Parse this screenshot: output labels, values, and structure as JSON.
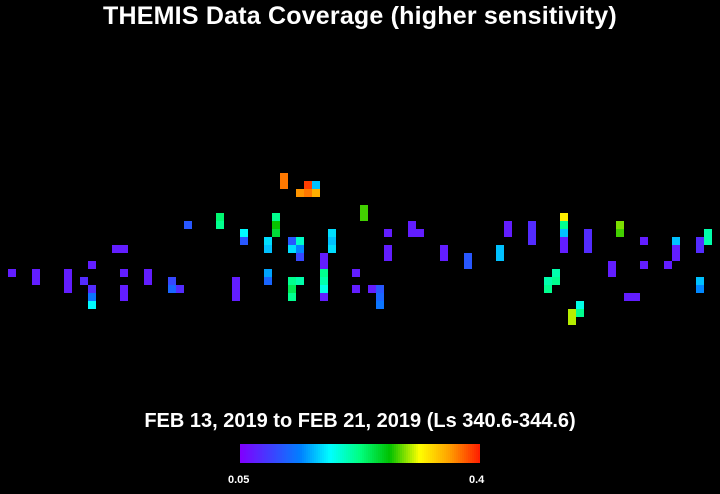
{
  "title": "THEMIS Data Coverage (higher sensitivity)",
  "subtitle": "FEB 13, 2019 to FEB 21, 2019 (Ls 340.6-344.6)",
  "colorbar": {
    "min_label": "0.05",
    "max_label": "0.4",
    "min": 0.05,
    "max": 0.4,
    "colors": [
      "#7f00ff",
      "#3f3fff",
      "#0080ff",
      "#00ffff",
      "#00ff80",
      "#00c000",
      "#ffff00",
      "#ffa000",
      "#ff2000"
    ]
  },
  "chart_data": {
    "type": "heatmap",
    "title": "THEMIS Data Coverage (higher sensitivity)",
    "subtitle": "FEB 13, 2019 to FEB 21, 2019 (Ls 340.6-344.6)",
    "value_range": [
      0.05,
      0.4
    ],
    "grid": false,
    "cells": [
      {
        "col": 1,
        "row": 29,
        "value": 0.07
      },
      {
        "col": 4,
        "row": 29,
        "value": 0.07
      },
      {
        "col": 4,
        "row": 30,
        "value": 0.07
      },
      {
        "col": 8,
        "row": 29,
        "value": 0.07
      },
      {
        "col": 8,
        "row": 30,
        "value": 0.07
      },
      {
        "col": 8,
        "row": 31,
        "value": 0.07
      },
      {
        "col": 10,
        "row": 30,
        "value": 0.08
      },
      {
        "col": 11,
        "row": 28,
        "value": 0.07
      },
      {
        "col": 11,
        "row": 31,
        "value": 0.08
      },
      {
        "col": 11,
        "row": 32,
        "value": 0.13
      },
      {
        "col": 11,
        "row": 33,
        "value": 0.18
      },
      {
        "col": 14,
        "row": 26,
        "value": 0.07
      },
      {
        "col": 15,
        "row": 26,
        "value": 0.07
      },
      {
        "col": 15,
        "row": 29,
        "value": 0.07
      },
      {
        "col": 15,
        "row": 31,
        "value": 0.07
      },
      {
        "col": 15,
        "row": 32,
        "value": 0.07
      },
      {
        "col": 18,
        "row": 29,
        "value": 0.07
      },
      {
        "col": 18,
        "row": 30,
        "value": 0.07
      },
      {
        "col": 21,
        "row": 30,
        "value": 0.1
      },
      {
        "col": 21,
        "row": 31,
        "value": 0.12
      },
      {
        "col": 22,
        "row": 31,
        "value": 0.08
      },
      {
        "col": 23,
        "row": 23,
        "value": 0.11
      },
      {
        "col": 27,
        "row": 22,
        "value": 0.23
      },
      {
        "col": 27,
        "row": 23,
        "value": 0.22
      },
      {
        "col": 29,
        "row": 30,
        "value": 0.07
      },
      {
        "col": 29,
        "row": 31,
        "value": 0.07
      },
      {
        "col": 29,
        "row": 32,
        "value": 0.07
      },
      {
        "col": 30,
        "row": 24,
        "value": 0.18
      },
      {
        "col": 30,
        "row": 25,
        "value": 0.11
      },
      {
        "col": 33,
        "row": 25,
        "value": 0.17
      },
      {
        "col": 33,
        "row": 26,
        "value": 0.16
      },
      {
        "col": 33,
        "row": 29,
        "value": 0.15
      },
      {
        "col": 33,
        "row": 30,
        "value": 0.12
      },
      {
        "col": 34,
        "row": 22,
        "value": 0.22
      },
      {
        "col": 34,
        "row": 23,
        "value": 0.27
      },
      {
        "col": 34,
        "row": 24,
        "value": 0.25
      },
      {
        "col": 35,
        "row": 17,
        "value": 0.37
      },
      {
        "col": 35,
        "row": 18,
        "value": 0.37
      },
      {
        "col": 36,
        "row": 25,
        "value": 0.11
      },
      {
        "col": 36,
        "row": 26,
        "value": 0.17
      },
      {
        "col": 36,
        "row": 30,
        "value": 0.22
      },
      {
        "col": 36,
        "row": 31,
        "value": 0.24
      },
      {
        "col": 36,
        "row": 32,
        "value": 0.22
      },
      {
        "col": 37,
        "row": 19,
        "value": 0.36
      },
      {
        "col": 37,
        "row": 25,
        "value": 0.2
      },
      {
        "col": 37,
        "row": 26,
        "value": 0.14
      },
      {
        "col": 37,
        "row": 27,
        "value": 0.1
      },
      {
        "col": 37,
        "row": 30,
        "value": 0.21
      },
      {
        "col": 38,
        "row": 18,
        "value": 0.39
      },
      {
        "col": 38,
        "row": 19,
        "value": 0.37
      },
      {
        "col": 39,
        "row": 18,
        "value": 0.16
      },
      {
        "col": 39,
        "row": 19,
        "value": 0.35
      },
      {
        "col": 40,
        "row": 27,
        "value": 0.07
      },
      {
        "col": 40,
        "row": 28,
        "value": 0.07
      },
      {
        "col": 40,
        "row": 29,
        "value": 0.22
      },
      {
        "col": 40,
        "row": 30,
        "value": 0.21
      },
      {
        "col": 40,
        "row": 31,
        "value": 0.19
      },
      {
        "col": 40,
        "row": 32,
        "value": 0.07
      },
      {
        "col": 41,
        "row": 24,
        "value": 0.17
      },
      {
        "col": 41,
        "row": 25,
        "value": 0.16
      },
      {
        "col": 41,
        "row": 26,
        "value": 0.17
      },
      {
        "col": 44,
        "row": 29,
        "value": 0.07
      },
      {
        "col": 44,
        "row": 31,
        "value": 0.07
      },
      {
        "col": 45,
        "row": 21,
        "value": 0.28
      },
      {
        "col": 45,
        "row": 22,
        "value": 0.28
      },
      {
        "col": 46,
        "row": 31,
        "value": 0.07
      },
      {
        "col": 47,
        "row": 31,
        "value": 0.11
      },
      {
        "col": 47,
        "row": 32,
        "value": 0.12
      },
      {
        "col": 47,
        "row": 33,
        "value": 0.13
      },
      {
        "col": 48,
        "row": 24,
        "value": 0.07
      },
      {
        "col": 48,
        "row": 26,
        "value": 0.07
      },
      {
        "col": 48,
        "row": 27,
        "value": 0.07
      },
      {
        "col": 51,
        "row": 23,
        "value": 0.07
      },
      {
        "col": 51,
        "row": 24,
        "value": 0.07
      },
      {
        "col": 52,
        "row": 24,
        "value": 0.07
      },
      {
        "col": 55,
        "row": 26,
        "value": 0.07
      },
      {
        "col": 55,
        "row": 27,
        "value": 0.07
      },
      {
        "col": 58,
        "row": 27,
        "value": 0.11
      },
      {
        "col": 58,
        "row": 28,
        "value": 0.11
      },
      {
        "col": 62,
        "row": 26,
        "value": 0.16
      },
      {
        "col": 62,
        "row": 27,
        "value": 0.16
      },
      {
        "col": 63,
        "row": 23,
        "value": 0.07
      },
      {
        "col": 63,
        "row": 24,
        "value": 0.07
      },
      {
        "col": 66,
        "row": 23,
        "value": 0.08
      },
      {
        "col": 66,
        "row": 24,
        "value": 0.08
      },
      {
        "col": 66,
        "row": 25,
        "value": 0.08
      },
      {
        "col": 68,
        "row": 30,
        "value": 0.21
      },
      {
        "col": 68,
        "row": 31,
        "value": 0.22
      },
      {
        "col": 69,
        "row": 29,
        "value": 0.21
      },
      {
        "col": 69,
        "row": 30,
        "value": 0.22
      },
      {
        "col": 70,
        "row": 22,
        "value": 0.32
      },
      {
        "col": 70,
        "row": 23,
        "value": 0.22
      },
      {
        "col": 70,
        "row": 24,
        "value": 0.16
      },
      {
        "col": 70,
        "row": 25,
        "value": 0.07
      },
      {
        "col": 70,
        "row": 26,
        "value": 0.07
      },
      {
        "col": 71,
        "row": 34,
        "value": 0.3
      },
      {
        "col": 71,
        "row": 35,
        "value": 0.3
      },
      {
        "col": 72,
        "row": 33,
        "value": 0.19
      },
      {
        "col": 72,
        "row": 34,
        "value": 0.22
      },
      {
        "col": 73,
        "row": 24,
        "value": 0.08
      },
      {
        "col": 73,
        "row": 25,
        "value": 0.08
      },
      {
        "col": 73,
        "row": 26,
        "value": 0.08
      },
      {
        "col": 76,
        "row": 28,
        "value": 0.07
      },
      {
        "col": 76,
        "row": 29,
        "value": 0.07
      },
      {
        "col": 77,
        "row": 23,
        "value": 0.29
      },
      {
        "col": 77,
        "row": 24,
        "value": 0.28
      },
      {
        "col": 78,
        "row": 32,
        "value": 0.07
      },
      {
        "col": 79,
        "row": 32,
        "value": 0.07
      },
      {
        "col": 80,
        "row": 25,
        "value": 0.07
      },
      {
        "col": 80,
        "row": 28,
        "value": 0.07
      },
      {
        "col": 83,
        "row": 28,
        "value": 0.07
      },
      {
        "col": 84,
        "row": 25,
        "value": 0.16
      },
      {
        "col": 84,
        "row": 26,
        "value": 0.07
      },
      {
        "col": 84,
        "row": 27,
        "value": 0.07
      },
      {
        "col": 87,
        "row": 25,
        "value": 0.08
      },
      {
        "col": 87,
        "row": 26,
        "value": 0.08
      },
      {
        "col": 87,
        "row": 30,
        "value": 0.16
      },
      {
        "col": 87,
        "row": 31,
        "value": 0.14
      },
      {
        "col": 88,
        "row": 24,
        "value": 0.21
      },
      {
        "col": 88,
        "row": 25,
        "value": 0.21
      }
    ]
  }
}
